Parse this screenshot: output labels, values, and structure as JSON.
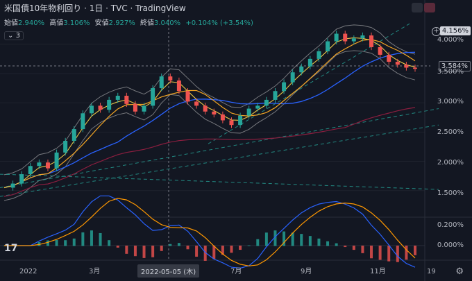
{
  "header": {
    "title": "米国債10年物利回り · 1日 · TVC · TradingView"
  },
  "ohlc": {
    "open_label": "始値",
    "open": "2.940%",
    "high_label": "高値",
    "high": "3.106%",
    "low_label": "安値",
    "low": "2.927%",
    "close_label": "終値",
    "close": "3.040%",
    "change": "+0.104% (+3.54%)"
  },
  "indicator_toggle": {
    "count": "3"
  },
  "price_tags": {
    "top": "4.156%",
    "last": "3.584%"
  },
  "main_axis": {
    "labels": [
      "4.000%",
      "3.500%",
      "3.000%",
      "2.500%",
      "2.000%",
      "1.500%"
    ]
  },
  "macd_axis": {
    "labels": [
      "0.200%",
      "0.000%"
    ]
  },
  "x_axis": {
    "labels": [
      "2022",
      "3月",
      "7月",
      "9月",
      "11月",
      "19"
    ],
    "crosshair_date": "2022-05-05 (木)"
  },
  "colors": {
    "up": "#26a69a",
    "down": "#ef5350",
    "ma_blue": "#2962ff",
    "ma_orange": "#f5a623",
    "ma_yellow": "#e8c547",
    "ma_maroon": "#8b1e3f",
    "bands": "#c8c8c8",
    "trend": "#26a69a",
    "macd": "#2962ff",
    "signal": "#ff9800"
  },
  "chart_data": {
    "type": "line",
    "title": "",
    "ylim": [
      1.2,
      4.4
    ],
    "series": [
      {
        "values": [
          1.55,
          1.62,
          1.78,
          1.92,
          1.98,
          1.88,
          2.15,
          2.35,
          2.55,
          2.82,
          2.95,
          2.88,
          3.05,
          3.12,
          2.98,
          2.85,
          2.95,
          3.25,
          3.45,
          3.38,
          3.2,
          3.02,
          2.95,
          2.85,
          2.8,
          2.7,
          2.62,
          2.78,
          2.9,
          2.95,
          3.05,
          3.2,
          3.35,
          3.52,
          3.62,
          3.75,
          3.88,
          4.05,
          4.18,
          4.05,
          4.1,
          4.15,
          3.95,
          3.82,
          3.7,
          3.65,
          3.6,
          3.58
        ]
      }
    ]
  }
}
